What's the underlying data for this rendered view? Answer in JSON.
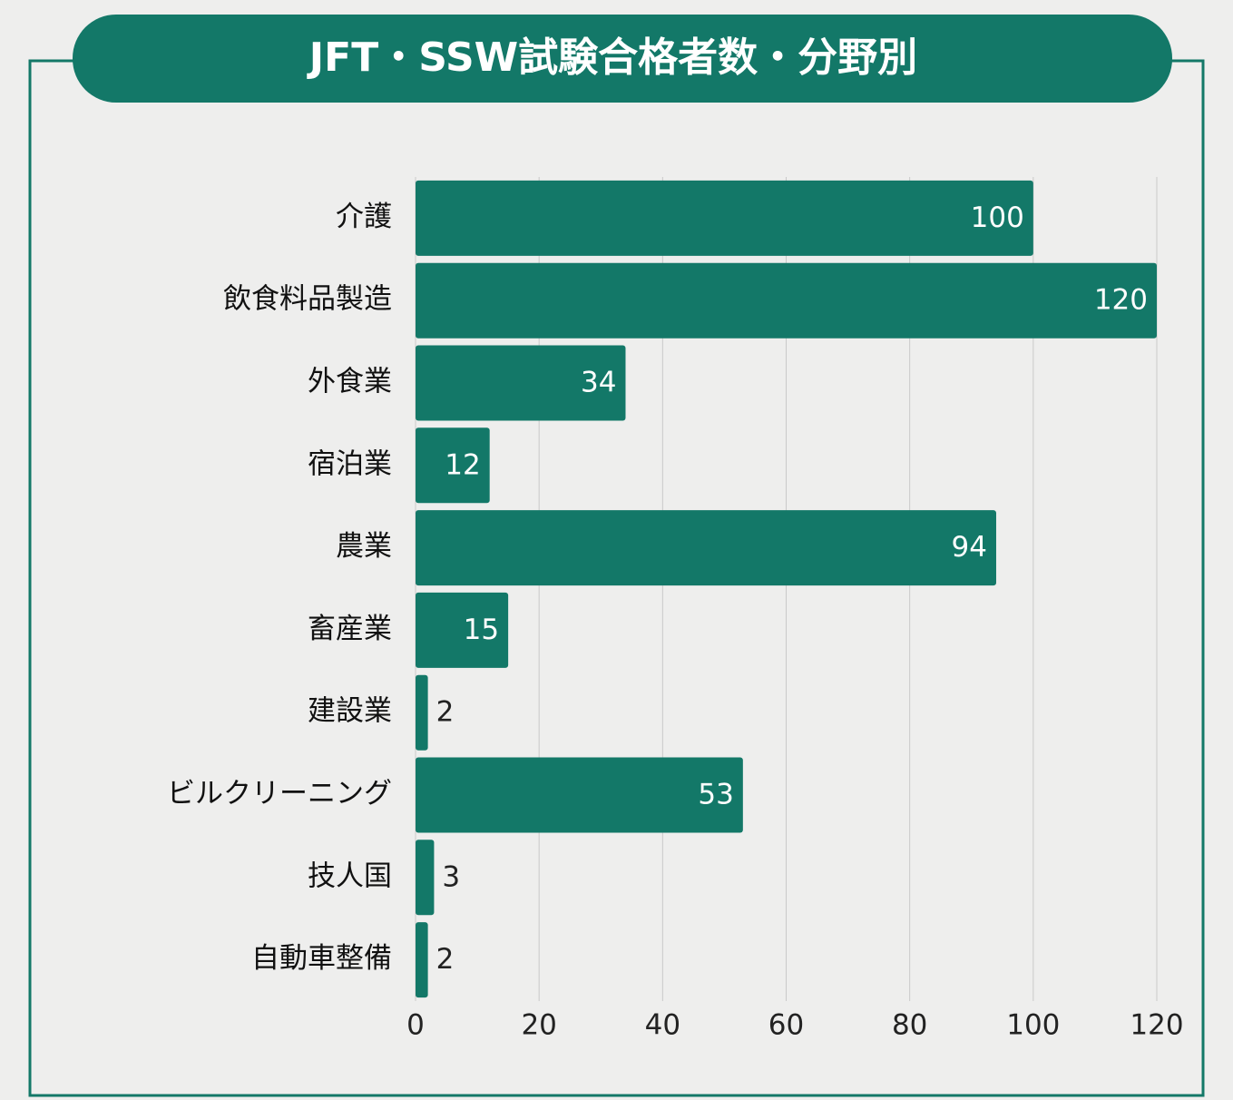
{
  "chart_data": {
    "type": "bar",
    "orientation": "horizontal",
    "title": "JFT・SSW試験合格者数・分野別",
    "categories": [
      "介護",
      "飲食料品製造",
      "外食業",
      "宿泊業",
      "農業",
      "畜産業",
      "建設業",
      "ビルクリーニング",
      "技人国",
      "自動車整備"
    ],
    "values": [
      100,
      120,
      34,
      12,
      94,
      15,
      2,
      53,
      3,
      2
    ],
    "color": "#137868",
    "xlim": [
      0,
      120
    ],
    "xticks": [
      0,
      20,
      40,
      60,
      80,
      100,
      120
    ],
    "grid": true
  }
}
